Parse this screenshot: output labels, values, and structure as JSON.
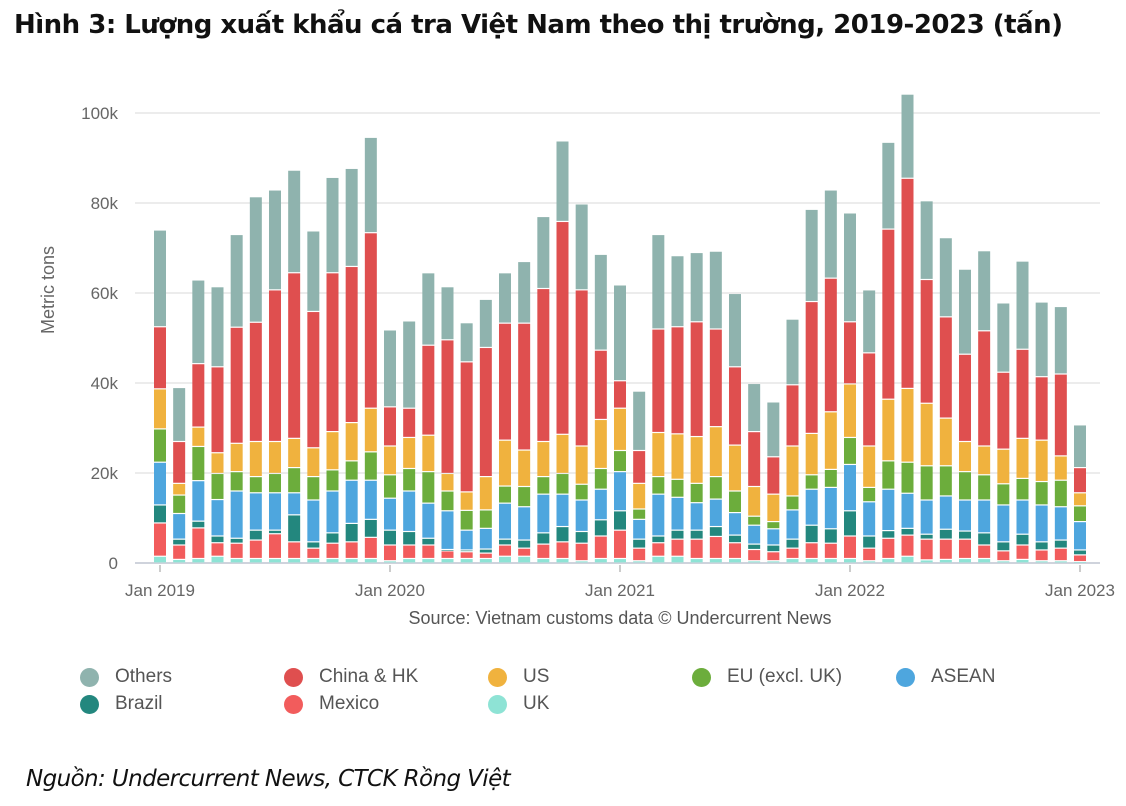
{
  "title": "Hình 3: Lượng xuất khẩu cá tra Việt Nam theo thị trường, 2019-2023 (tấn)",
  "footer": "Nguồn: Undercurrent News, CTCK Rồng Việt",
  "chart_data": {
    "type": "bar",
    "stacked": true,
    "ylabel": "Metric tons",
    "ylim": [
      0,
      105000
    ],
    "yticks": [
      0,
      20000,
      40000,
      60000,
      80000,
      100000
    ],
    "ytick_labels": [
      "0",
      "20k",
      "40k",
      "60k",
      "80k",
      "100k"
    ],
    "xtick_labels": [
      "Jan 2019",
      "Jan 2020",
      "Jan 2021",
      "Jan 2022",
      "Jan 2023"
    ],
    "grid": true,
    "source": "Source: Vietnam customs data © Undercurrent News",
    "legend_position": "bottom",
    "categories": [
      "2019-01",
      "2019-02",
      "2019-03",
      "2019-04",
      "2019-05",
      "2019-06",
      "2019-07",
      "2019-08",
      "2019-09",
      "2019-10",
      "2019-11",
      "2019-12",
      "2020-01",
      "2020-02",
      "2020-03",
      "2020-04",
      "2020-05",
      "2020-06",
      "2020-07",
      "2020-08",
      "2020-09",
      "2020-10",
      "2020-11",
      "2020-12",
      "2021-01",
      "2021-02",
      "2021-03",
      "2021-04",
      "2021-05",
      "2021-06",
      "2021-07",
      "2021-08",
      "2021-09",
      "2021-10",
      "2021-11",
      "2021-12",
      "2022-01",
      "2022-02",
      "2022-03",
      "2022-04",
      "2022-05",
      "2022-06",
      "2022-07",
      "2022-08",
      "2022-09",
      "2022-10",
      "2022-11",
      "2022-12",
      "2023-01"
    ],
    "series": [
      {
        "name": "UK",
        "color": "#8ee3d5",
        "values": [
          1500,
          800,
          1000,
          1500,
          1000,
          1000,
          1000,
          1000,
          1000,
          1000,
          1000,
          1000,
          500,
          1000,
          1000,
          1000,
          1000,
          1000,
          1500,
          1500,
          1000,
          1000,
          500,
          1000,
          1000,
          500,
          1500,
          1500,
          1000,
          1000,
          1000,
          500,
          500,
          1000,
          1000,
          1000,
          1000,
          500,
          1000,
          1500,
          700,
          800,
          1000,
          1000,
          500,
          800,
          500,
          500,
          300
        ]
      },
      {
        "name": "Mexico",
        "color": "#f25c5c",
        "values": [
          7400,
          3200,
          6800,
          3000,
          3400,
          4100,
          5500,
          3700,
          2300,
          3400,
          3700,
          4700,
          3500,
          3000,
          3000,
          1700,
          1500,
          1200,
          2500,
          1800,
          3200,
          3700,
          3900,
          5000,
          6300,
          2800,
          3000,
          3800,
          4300,
          4900,
          3500,
          2500,
          2000,
          2300,
          3500,
          3400,
          5000,
          2800,
          4500,
          4700,
          4600,
          4500,
          4300,
          3000,
          2200,
          3200,
          2400,
          2800,
          1500
        ]
      },
      {
        "name": "Brazil",
        "color": "#23877e",
        "values": [
          4000,
          1300,
          1500,
          1500,
          1100,
          2200,
          800,
          6000,
          1400,
          2300,
          4100,
          4000,
          3300,
          3000,
          1500,
          300,
          400,
          900,
          1300,
          1800,
          2500,
          3400,
          2600,
          3600,
          4300,
          2000,
          1500,
          2000,
          2000,
          2200,
          1700,
          1200,
          1500,
          2000,
          3900,
          3200,
          5600,
          2700,
          1700,
          1500,
          1100,
          2200,
          1800,
          2700,
          2000,
          2400,
          1800,
          1800,
          1100
        ]
      },
      {
        "name": "ASEAN",
        "color": "#4ea6de",
        "values": [
          9500,
          5700,
          9000,
          8100,
          10500,
          8300,
          8300,
          4900,
          9300,
          9300,
          9600,
          8700,
          7100,
          9000,
          7800,
          8600,
          4400,
          4600,
          8000,
          7400,
          8600,
          7200,
          7000,
          6800,
          8700,
          4400,
          9300,
          7300,
          6100,
          6100,
          5000,
          4200,
          3600,
          6500,
          8000,
          9200,
          10300,
          7600,
          9200,
          7800,
          7600,
          7400,
          6900,
          7300,
          8200,
          7600,
          8200,
          7400,
          6300
        ]
      },
      {
        "name": "EU (excl. UK)",
        "color": "#6cad3c",
        "values": [
          7400,
          4100,
          7600,
          5800,
          4300,
          3600,
          4300,
          5600,
          5200,
          4700,
          4300,
          6300,
          5200,
          5000,
          7000,
          4400,
          4400,
          4100,
          3800,
          4500,
          3900,
          4600,
          3500,
          4600,
          4700,
          2300,
          3900,
          4000,
          4300,
          5000,
          4800,
          2000,
          1600,
          3100,
          3200,
          4000,
          6000,
          3200,
          6300,
          6900,
          7600,
          6700,
          6300,
          5600,
          4700,
          4800,
          5200,
          5900,
          3500
        ]
      },
      {
        "name": "US",
        "color": "#f0b23e",
        "values": [
          8900,
          2600,
          4300,
          4600,
          6300,
          7800,
          7100,
          6500,
          6400,
          8500,
          8500,
          9700,
          6400,
          6900,
          8100,
          3900,
          4100,
          7400,
          10200,
          8100,
          7800,
          8700,
          8500,
          10900,
          9400,
          5700,
          9800,
          10100,
          10400,
          11100,
          10200,
          6600,
          6100,
          11100,
          9200,
          12800,
          11900,
          9200,
          13700,
          16400,
          13900,
          10600,
          6700,
          6400,
          7700,
          8900,
          9200,
          5400,
          2900
        ]
      },
      {
        "name": "China & HK",
        "color": "#df4f4f",
        "values": [
          13800,
          9300,
          14100,
          19100,
          25800,
          26500,
          33700,
          36800,
          30300,
          35300,
          34700,
          39000,
          8700,
          6500,
          20000,
          29700,
          28900,
          28700,
          26000,
          28200,
          34000,
          47300,
          34700,
          15400,
          6100,
          7300,
          23000,
          23800,
          25500,
          21700,
          17400,
          12200,
          8300,
          13600,
          29300,
          29700,
          13800,
          20700,
          37800,
          46700,
          27500,
          22500,
          19400,
          25600,
          17100,
          19800,
          14100,
          18200,
          5600
        ]
      },
      {
        "name": "Others",
        "color": "#8fb3ae",
        "values": [
          21500,
          12000,
          18600,
          17800,
          20600,
          27900,
          22200,
          22800,
          17900,
          21200,
          21800,
          21200,
          17100,
          19400,
          16100,
          11800,
          8700,
          10700,
          11200,
          13700,
          16000,
          17900,
          19100,
          21300,
          21300,
          13200,
          21000,
          15800,
          15400,
          17300,
          16300,
          10700,
          12200,
          14600,
          20500,
          19600,
          24200,
          14000,
          19300,
          18700,
          17500,
          17600,
          18900,
          17800,
          15400,
          19600,
          16600,
          15000,
          9500
        ]
      }
    ],
    "legend_order": [
      "Others",
      "China & HK",
      "US",
      "EU (excl. UK)",
      "ASEAN",
      "Brazil",
      "Mexico",
      "UK"
    ]
  }
}
